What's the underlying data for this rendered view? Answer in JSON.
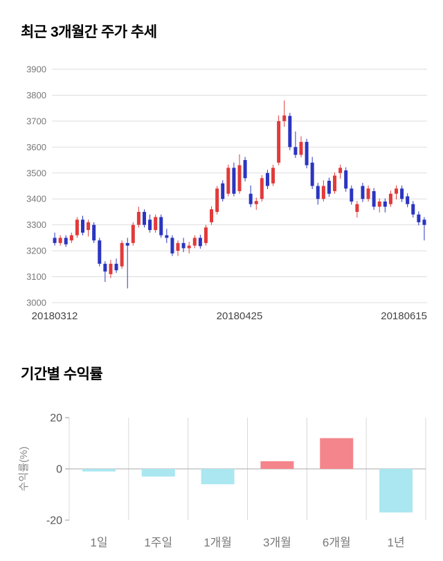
{
  "chart_data": [
    {
      "type": "candlestick",
      "title": "최근 3개월간 주가 추세",
      "ylim": [
        3000,
        3900
      ],
      "yticks": [
        3000,
        3100,
        3200,
        3300,
        3400,
        3500,
        3600,
        3700,
        3800,
        3900
      ],
      "xtick_labels": [
        "20180312",
        "20180425",
        "20180615"
      ],
      "up_color": "#e23a3a",
      "down_color": "#2b35c0",
      "candles": [
        [
          3250,
          3270,
          3220,
          3230
        ],
        [
          3230,
          3260,
          3220,
          3250
        ],
        [
          3250,
          3260,
          3215,
          3225
        ],
        [
          3240,
          3270,
          3230,
          3260
        ],
        [
          3260,
          3330,
          3250,
          3320
        ],
        [
          3320,
          3335,
          3260,
          3270
        ],
        [
          3280,
          3320,
          3255,
          3310
        ],
        [
          3300,
          3310,
          3230,
          3240
        ],
        [
          3240,
          3250,
          3140,
          3150
        ],
        [
          3150,
          3160,
          3080,
          3120
        ],
        [
          3110,
          3165,
          3095,
          3150
        ],
        [
          3150,
          3170,
          3115,
          3125
        ],
        [
          3140,
          3240,
          3130,
          3230
        ],
        [
          3230,
          3250,
          3055,
          3220
        ],
        [
          3230,
          3310,
          3220,
          3300
        ],
        [
          3300,
          3370,
          3290,
          3350
        ],
        [
          3350,
          3360,
          3290,
          3300
        ],
        [
          3320,
          3340,
          3270,
          3280
        ],
        [
          3280,
          3340,
          3270,
          3330
        ],
        [
          3330,
          3340,
          3250,
          3260
        ],
        [
          3260,
          3285,
          3230,
          3250
        ],
        [
          3250,
          3260,
          3180,
          3190
        ],
        [
          3200,
          3240,
          3180,
          3230
        ],
        [
          3230,
          3250,
          3195,
          3210
        ],
        [
          3210,
          3235,
          3190,
          3220
        ],
        [
          3220,
          3260,
          3210,
          3250
        ],
        [
          3250,
          3262,
          3208,
          3218
        ],
        [
          3230,
          3300,
          3220,
          3290
        ],
        [
          3310,
          3372,
          3300,
          3360
        ],
        [
          3350,
          3450,
          3340,
          3440
        ],
        [
          3460,
          3472,
          3390,
          3400
        ],
        [
          3420,
          3532,
          3410,
          3520
        ],
        [
          3520,
          3540,
          3410,
          3420
        ],
        [
          3430,
          3572,
          3420,
          3530
        ],
        [
          3550,
          3562,
          3468,
          3480
        ],
        [
          3420,
          3452,
          3368,
          3380
        ],
        [
          3380,
          3405,
          3358,
          3392
        ],
        [
          3400,
          3492,
          3390,
          3480
        ],
        [
          3500,
          3512,
          3438,
          3450
        ],
        [
          3460,
          3532,
          3450,
          3520
        ],
        [
          3540,
          3722,
          3530,
          3700
        ],
        [
          3700,
          3780,
          3678,
          3722
        ],
        [
          3720,
          3732,
          3588,
          3600
        ],
        [
          3600,
          3660,
          3558,
          3570
        ],
        [
          3570,
          3642,
          3560,
          3620
        ],
        [
          3620,
          3632,
          3518,
          3530
        ],
        [
          3540,
          3562,
          3438,
          3450
        ],
        [
          3450,
          3462,
          3378,
          3400
        ],
        [
          3400,
          3472,
          3390,
          3450
        ],
        [
          3470,
          3482,
          3408,
          3420
        ],
        [
          3430,
          3502,
          3420,
          3490
        ],
        [
          3500,
          3532,
          3478,
          3520
        ],
        [
          3510,
          3522,
          3428,
          3440
        ],
        [
          3440,
          3452,
          3378,
          3390
        ],
        [
          3350,
          3392,
          3328,
          3380
        ],
        [
          3450,
          3462,
          3388,
          3400
        ],
        [
          3400,
          3452,
          3390,
          3440
        ],
        [
          3430,
          3442,
          3358,
          3370
        ],
        [
          3370,
          3402,
          3348,
          3390
        ],
        [
          3390,
          3402,
          3348,
          3370
        ],
        [
          3380,
          3432,
          3370,
          3420
        ],
        [
          3420,
          3452,
          3398,
          3440
        ],
        [
          3440,
          3452,
          3388,
          3400
        ],
        [
          3410,
          3422,
          3368,
          3380
        ],
        [
          3380,
          3392,
          3328,
          3340
        ],
        [
          3340,
          3352,
          3298,
          3310
        ],
        [
          3320,
          3330,
          3240,
          3300
        ]
      ]
    },
    {
      "type": "bar",
      "title": "기간별 수익률",
      "ylabel": "수익률(%)",
      "categories": [
        "1일",
        "1주일",
        "1개월",
        "3개월",
        "6개월",
        "1년"
      ],
      "values": [
        -1,
        -3,
        -6,
        3,
        12,
        -17
      ],
      "ylim": [
        -20,
        20
      ],
      "yticks": [
        20,
        0,
        -20
      ],
      "pos_color": "#f4858c",
      "neg_color": "#aae7f0"
    }
  ]
}
